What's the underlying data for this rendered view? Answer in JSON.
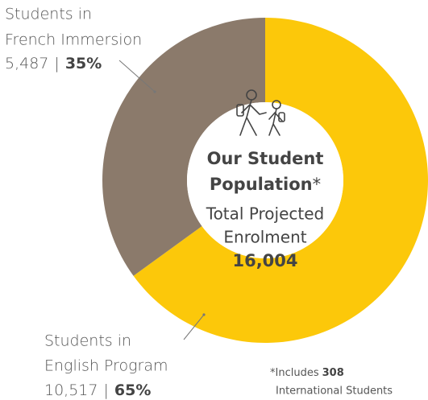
{
  "chart_data": {
    "type": "pie",
    "donut": true,
    "categories": [
      [
        "Students in",
        "English Program"
      ],
      [
        "Students in",
        "French Immersion"
      ]
    ],
    "values": [
      65,
      35
    ],
    "value_labels": [
      "65%",
      "35%"
    ],
    "count_labels": [
      "10,517",
      "5,487"
    ],
    "separator": "|",
    "colors": [
      "#fcc80a",
      "#8b7a6b"
    ],
    "center_title_lines": [
      "Our Student",
      "Population"
    ],
    "center_title_mark": "*",
    "center_subtitle_lines": [
      "Total Projected",
      "Enrolment"
    ],
    "total_label": "16,004",
    "footnote": {
      "prefix": "*Includes",
      "number": "308",
      "suffix": "International Students"
    }
  }
}
